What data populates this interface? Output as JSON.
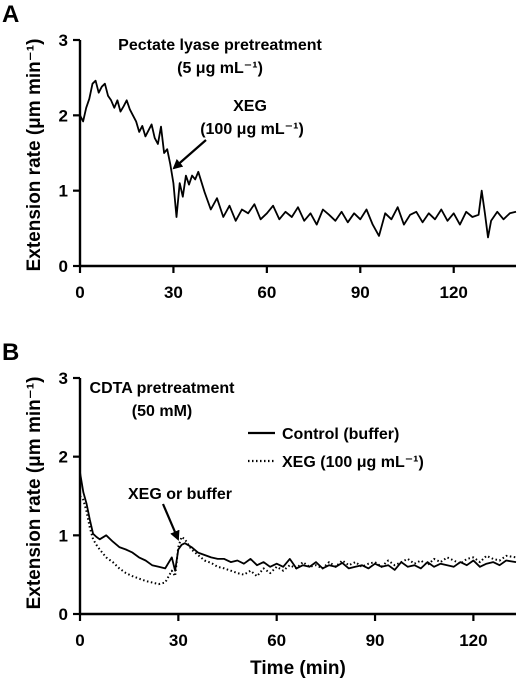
{
  "chart_data": [
    {
      "panel": "A",
      "type": "line",
      "ylabel": "Extension rate (μm min⁻¹)",
      "xlabel": "",
      "xlim": [
        0,
        140
      ],
      "ylim": [
        0,
        3
      ],
      "xticks": [
        0,
        30,
        60,
        90,
        120
      ],
      "yticks": [
        0,
        1,
        2,
        3
      ],
      "annotation_title": [
        "Pectate lyase pretreatment",
        "(5 μg mL⁻¹)"
      ],
      "arrow_label": [
        "XEG",
        "(100 μg mL⁻¹)"
      ],
      "arrow_target": [
        30,
        1.3
      ],
      "series": [
        {
          "style": "solid",
          "x": [
            0,
            1,
            2,
            3,
            4,
            5,
            6,
            7,
            8,
            9,
            10,
            11,
            12,
            13,
            14,
            15,
            16,
            17,
            18,
            19,
            20,
            21,
            22,
            23,
            24,
            25,
            26,
            27,
            28,
            29,
            30,
            31,
            32,
            33,
            34,
            35,
            36,
            37,
            38,
            40,
            42,
            44,
            46,
            48,
            50,
            52,
            54,
            56,
            58,
            60,
            62,
            64,
            66,
            68,
            70,
            72,
            74,
            76,
            78,
            80,
            82,
            84,
            86,
            88,
            90,
            92,
            94,
            96,
            98,
            100,
            102,
            104,
            106,
            108,
            110,
            112,
            114,
            116,
            118,
            120,
            122,
            124,
            126,
            128,
            129,
            130,
            131,
            132,
            134,
            136,
            138,
            140
          ],
          "y": [
            2.0,
            1.92,
            2.1,
            2.22,
            2.42,
            2.46,
            2.3,
            2.38,
            2.42,
            2.26,
            2.2,
            2.1,
            2.2,
            2.05,
            2.12,
            2.2,
            2.08,
            2.0,
            1.92,
            1.78,
            1.86,
            1.72,
            1.8,
            1.88,
            1.7,
            1.62,
            1.85,
            1.5,
            1.55,
            1.35,
            1.1,
            0.65,
            1.1,
            0.92,
            1.2,
            1.08,
            1.2,
            1.15,
            1.25,
            0.98,
            0.75,
            0.9,
            0.65,
            0.8,
            0.6,
            0.75,
            0.7,
            0.82,
            0.62,
            0.7,
            0.8,
            0.62,
            0.72,
            0.65,
            0.78,
            0.6,
            0.7,
            0.55,
            0.75,
            0.68,
            0.6,
            0.72,
            0.58,
            0.7,
            0.62,
            0.75,
            0.55,
            0.4,
            0.7,
            0.62,
            0.78,
            0.55,
            0.68,
            0.72,
            0.58,
            0.7,
            0.62,
            0.75,
            0.6,
            0.7,
            0.55,
            0.72,
            0.65,
            0.68,
            1.0,
            0.7,
            0.38,
            0.6,
            0.72,
            0.62,
            0.7,
            0.72
          ]
        }
      ]
    },
    {
      "panel": "B",
      "type": "line",
      "ylabel": "Extension rate (μm min⁻¹)",
      "xlabel": "Time (min)",
      "xlim": [
        0,
        133
      ],
      "ylim": [
        0,
        3
      ],
      "xticks": [
        0,
        30,
        60,
        90,
        120
      ],
      "yticks": [
        0,
        1,
        2,
        3
      ],
      "annotation_title": [
        "CDTA pretreatment",
        "(50 mM)"
      ],
      "arrow_label": [
        "XEG or buffer"
      ],
      "arrow_target": [
        30,
        0.95
      ],
      "series": [
        {
          "name": "Control (buffer)",
          "style": "solid",
          "x": [
            0,
            1,
            2,
            3,
            4,
            5,
            6,
            8,
            10,
            12,
            14,
            16,
            18,
            20,
            22,
            24,
            26,
            28,
            29,
            30,
            31,
            32,
            34,
            36,
            38,
            40,
            42,
            44,
            46,
            48,
            50,
            52,
            54,
            56,
            58,
            60,
            62,
            64,
            66,
            68,
            70,
            72,
            74,
            76,
            78,
            80,
            82,
            84,
            86,
            88,
            90,
            92,
            94,
            96,
            98,
            100,
            102,
            104,
            106,
            108,
            110,
            112,
            114,
            116,
            118,
            120,
            122,
            124,
            126,
            128,
            130,
            133
          ],
          "y": [
            1.8,
            1.55,
            1.4,
            1.2,
            1.02,
            0.98,
            0.95,
            1.0,
            0.92,
            0.85,
            0.82,
            0.78,
            0.72,
            0.68,
            0.62,
            0.6,
            0.58,
            0.72,
            0.55,
            0.82,
            0.88,
            0.9,
            0.85,
            0.78,
            0.75,
            0.72,
            0.7,
            0.7,
            0.66,
            0.68,
            0.64,
            0.7,
            0.62,
            0.66,
            0.6,
            0.64,
            0.6,
            0.7,
            0.58,
            0.62,
            0.6,
            0.66,
            0.58,
            0.62,
            0.6,
            0.65,
            0.58,
            0.6,
            0.62,
            0.58,
            0.64,
            0.6,
            0.62,
            0.56,
            0.66,
            0.6,
            0.62,
            0.58,
            0.66,
            0.6,
            0.64,
            0.62,
            0.6,
            0.66,
            0.62,
            0.68,
            0.6,
            0.64,
            0.66,
            0.62,
            0.68,
            0.66
          ]
        },
        {
          "name": "XEG (100 μg mL⁻¹)",
          "style": "dotted",
          "x": [
            0,
            1,
            2,
            3,
            4,
            5,
            6,
            8,
            10,
            12,
            14,
            16,
            18,
            20,
            22,
            24,
            26,
            28,
            29,
            30,
            31,
            32,
            34,
            36,
            38,
            40,
            42,
            44,
            46,
            48,
            50,
            52,
            54,
            56,
            58,
            60,
            62,
            64,
            66,
            68,
            70,
            72,
            74,
            76,
            78,
            80,
            82,
            84,
            86,
            88,
            90,
            92,
            94,
            96,
            98,
            100,
            102,
            104,
            106,
            108,
            110,
            112,
            114,
            116,
            118,
            120,
            122,
            124,
            126,
            128,
            130,
            133
          ],
          "y": [
            1.5,
            1.45,
            1.3,
            1.1,
            0.95,
            0.88,
            0.82,
            0.72,
            0.66,
            0.58,
            0.52,
            0.48,
            0.45,
            0.42,
            0.4,
            0.38,
            0.4,
            0.55,
            0.48,
            0.85,
            0.98,
            0.95,
            0.82,
            0.75,
            0.68,
            0.65,
            0.6,
            0.58,
            0.55,
            0.52,
            0.5,
            0.55,
            0.48,
            0.58,
            0.52,
            0.6,
            0.55,
            0.62,
            0.58,
            0.66,
            0.6,
            0.62,
            0.58,
            0.66,
            0.6,
            0.68,
            0.62,
            0.66,
            0.6,
            0.64,
            0.66,
            0.6,
            0.68,
            0.62,
            0.66,
            0.7,
            0.64,
            0.68,
            0.62,
            0.7,
            0.66,
            0.72,
            0.68,
            0.64,
            0.7,
            0.72,
            0.66,
            0.74,
            0.7,
            0.68,
            0.74,
            0.72
          ]
        }
      ]
    }
  ]
}
